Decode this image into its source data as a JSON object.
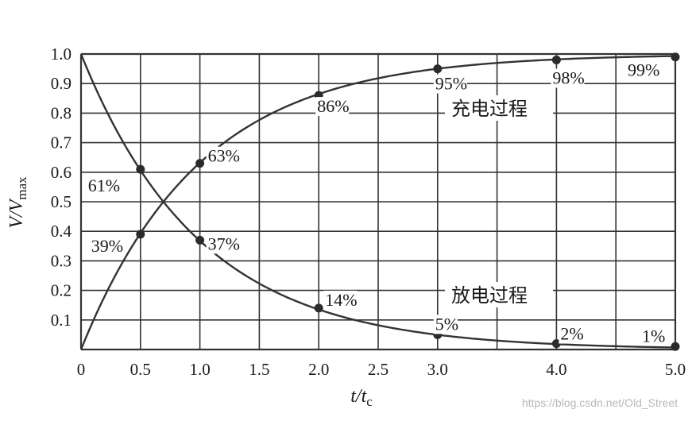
{
  "chart_data": {
    "type": "line",
    "x_ticks": [
      "0",
      "0.5",
      "1.0",
      "1.5",
      "2.0",
      "2.5",
      "3.0",
      "",
      "4.0",
      "",
      "5.0"
    ],
    "y_ticks": [
      "0.1",
      "0.2",
      "0.3",
      "0.4",
      "0.5",
      "0.6",
      "0.7",
      "0.8",
      "0.9",
      "1.0"
    ],
    "xlim": [
      0,
      5
    ],
    "ylim": [
      0,
      1
    ],
    "grid": true,
    "xlabel_main": "t",
    "xlabel_sub": "c",
    "ylabel_main": "V",
    "ylabel_sub": "max",
    "series": [
      {
        "name": "充电过程",
        "color": "#333333",
        "points": [
          {
            "x": 0.5,
            "y": 0.39,
            "label": "39%"
          },
          {
            "x": 1.0,
            "y": 0.63,
            "label": "63%"
          },
          {
            "x": 2.0,
            "y": 0.86,
            "label": "86%"
          },
          {
            "x": 3.0,
            "y": 0.95,
            "label": "95%"
          },
          {
            "x": 4.0,
            "y": 0.98,
            "label": "98%"
          },
          {
            "x": 5.0,
            "y": 0.99,
            "label": "99%"
          }
        ]
      },
      {
        "name": "放电过程",
        "color": "#333333",
        "points": [
          {
            "x": 0.5,
            "y": 0.61,
            "label": "61%"
          },
          {
            "x": 1.0,
            "y": 0.37,
            "label": "37%"
          },
          {
            "x": 2.0,
            "y": 0.14,
            "label": "14%"
          },
          {
            "x": 3.0,
            "y": 0.05,
            "label": "5%"
          },
          {
            "x": 4.0,
            "y": 0.02,
            "label": "2%"
          },
          {
            "x": 5.0,
            "y": 0.01,
            "label": "1%"
          }
        ]
      }
    ]
  },
  "watermark": "https://blog.csdn.net/Old_Street"
}
